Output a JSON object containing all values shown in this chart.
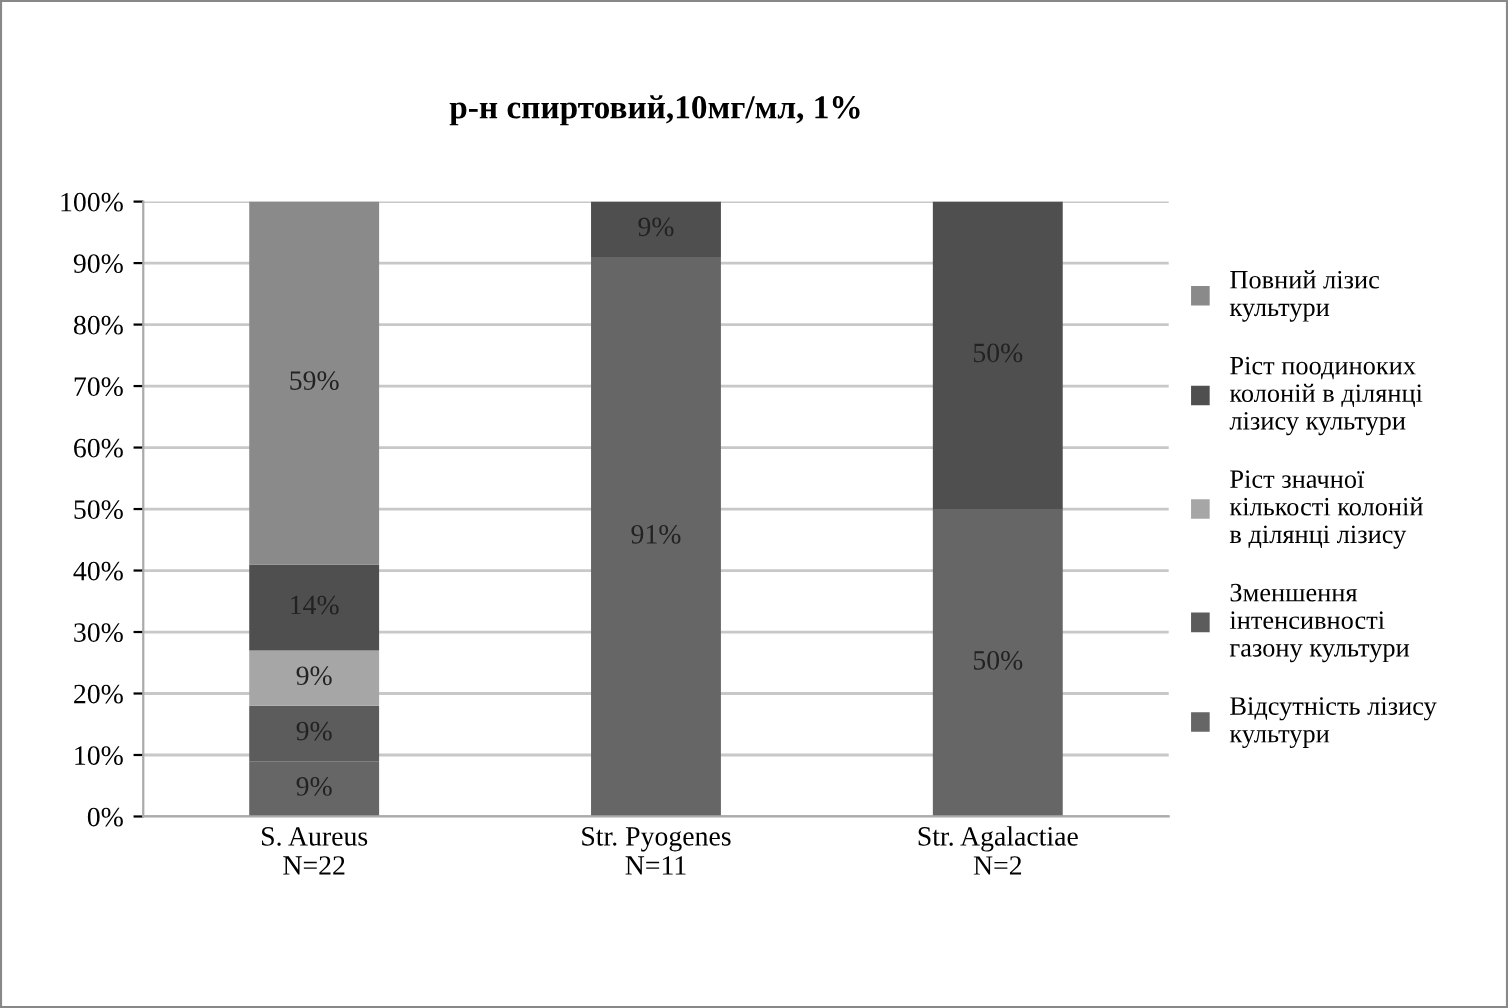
{
  "chart_data": {
    "type": "bar",
    "stacked": true,
    "title": "р-н спиртовий,10мг/мл, 1%",
    "categories": [
      "S. Aureus\nN=22",
      "Str. Pyogenes\nN=11",
      "Str. Agalactiae\nN=2"
    ],
    "series": [
      {
        "name": "Відсутність лізису культури",
        "color": "#666666",
        "values": [
          9,
          91,
          50
        ],
        "value_labels": [
          "9%",
          "91%",
          "50%"
        ]
      },
      {
        "name": "Зменшення інтенсивності газону культури",
        "color": "#5c5c5c",
        "values": [
          9,
          0,
          0
        ],
        "value_labels": [
          "9%",
          null,
          null
        ]
      },
      {
        "name": "Ріст значної кількості колоній в ділянці лізису",
        "color": "#a6a6a6",
        "values": [
          9,
          0,
          0
        ],
        "value_labels": [
          "9%",
          null,
          null
        ]
      },
      {
        "name": "Ріст поодиноких колоній в ділянці лізису культури",
        "color": "#4f4f4f",
        "values": [
          14,
          9,
          50
        ],
        "value_labels": [
          "14%",
          "9%",
          "50%"
        ]
      },
      {
        "name": "Повний лізис культури",
        "color": "#8a8a8a",
        "values": [
          59,
          0,
          0
        ],
        "value_labels": [
          "59%",
          null,
          null
        ]
      }
    ],
    "ylim": [
      0,
      100
    ],
    "yticks": [
      {
        "value": 0,
        "label": "0%"
      },
      {
        "value": 10,
        "label": "10%"
      },
      {
        "value": 20,
        "label": "20%"
      },
      {
        "value": 30,
        "label": "30%"
      },
      {
        "value": 40,
        "label": "40%"
      },
      {
        "value": 50,
        "label": "50%"
      },
      {
        "value": 60,
        "label": "60%"
      },
      {
        "value": 70,
        "label": "70%"
      },
      {
        "value": 80,
        "label": "80%"
      },
      {
        "value": 90,
        "label": "90%"
      },
      {
        "value": 100,
        "label": "100%"
      }
    ],
    "grid": "y",
    "legend": "right"
  }
}
